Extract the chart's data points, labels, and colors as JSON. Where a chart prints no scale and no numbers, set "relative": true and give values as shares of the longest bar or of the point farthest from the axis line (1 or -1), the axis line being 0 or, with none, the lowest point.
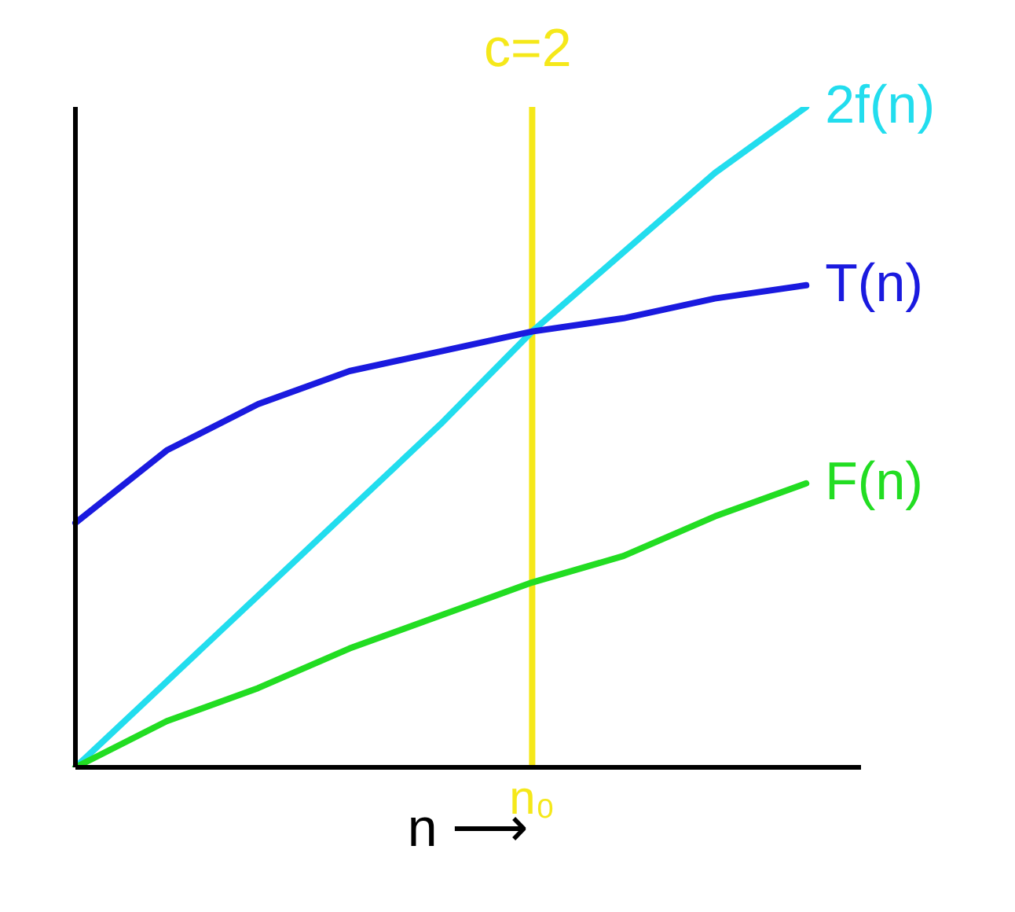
{
  "chart_data": {
    "type": "line",
    "relative": true,
    "categories": [
      null,
      null,
      null,
      null,
      null,
      null,
      null,
      null,
      null
    ],
    "xlabel": "n ⟶",
    "legend": false,
    "grid": false,
    "marker": "none",
    "series": [
      {
        "name": "2f(n)",
        "color": "#22ddee",
        "values": [
          0,
          0.13,
          0.26,
          0.39,
          0.52,
          0.66,
          0.78,
          0.9,
          1.0
        ]
      },
      {
        "name": "T(n)",
        "color": "#1a1adf",
        "values": [
          0.37,
          0.48,
          0.55,
          0.6,
          0.63,
          0.66,
          0.68,
          0.71,
          0.73
        ]
      },
      {
        "name": "F(n)",
        "color": "#22dd22",
        "values": [
          0,
          0.07,
          0.12,
          0.18,
          0.23,
          0.28,
          0.32,
          0.38,
          0.43
        ]
      }
    ],
    "annotations": [
      "c=2",
      "n₀"
    ]
  }
}
